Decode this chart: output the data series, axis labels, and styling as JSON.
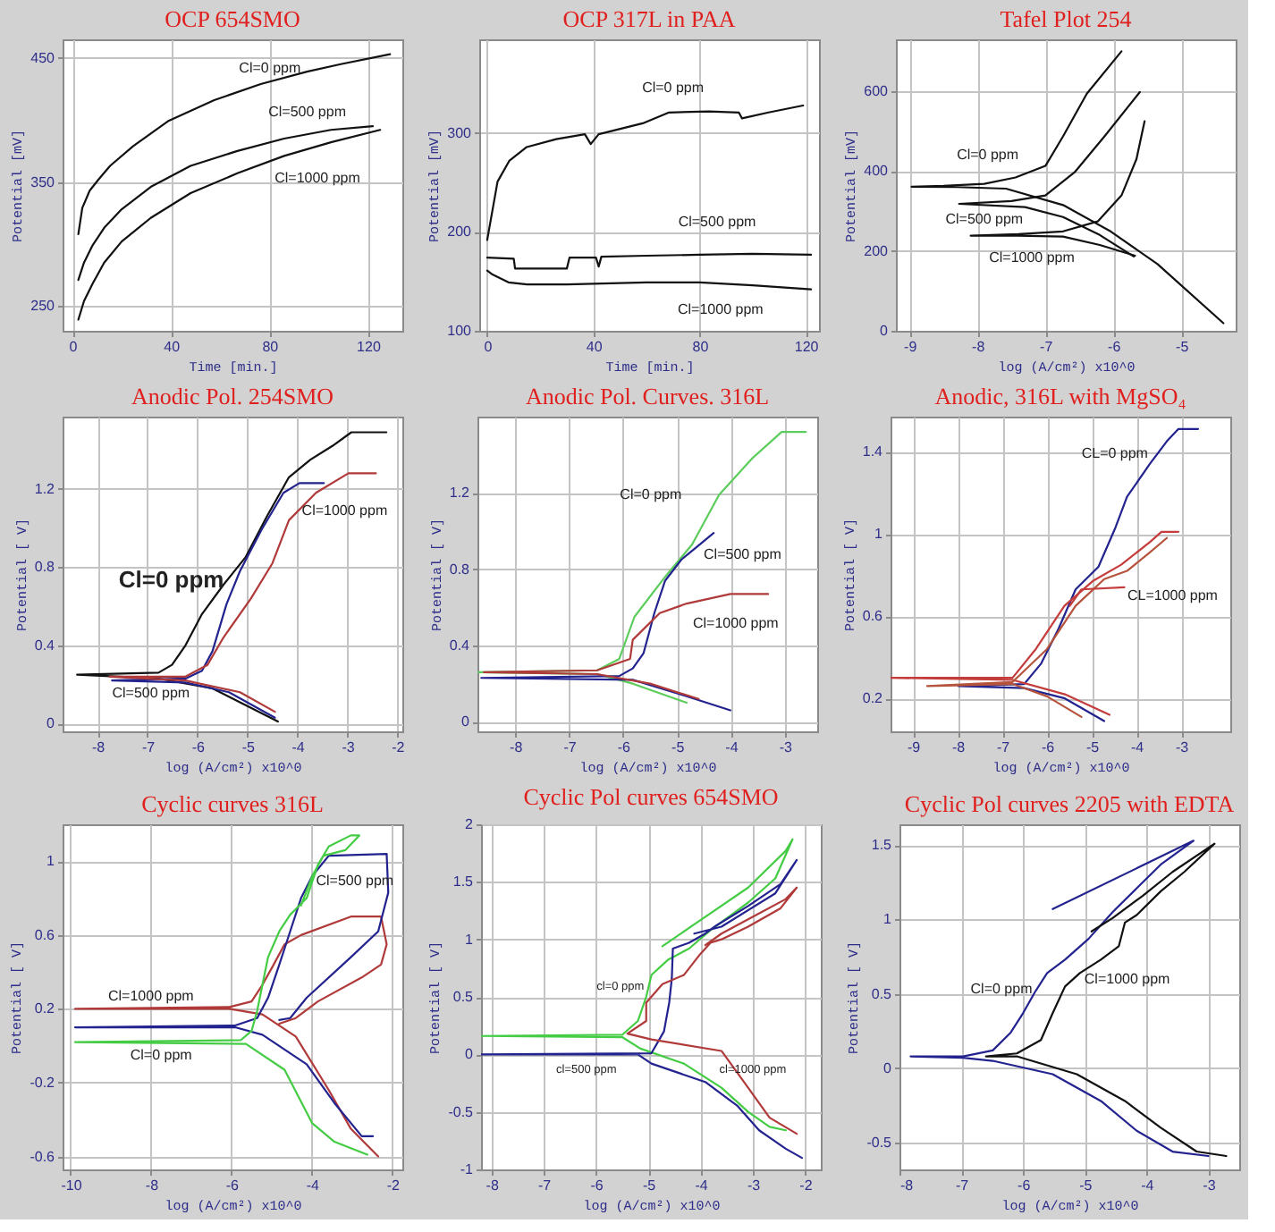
{
  "chart_data": [
    {
      "type": "line",
      "title": "OCP 654SMO",
      "xlabel": "Time [min.]",
      "ylabel": "Potential [mV]",
      "xlim": [
        -4,
        134
      ],
      "ylim": [
        230,
        465
      ],
      "xticks": [
        0,
        40,
        80,
        120
      ],
      "yticks": [
        250,
        350,
        450
      ],
      "grid": true,
      "series": [
        {
          "color": "#111111",
          "x": [
            2.4,
            4,
            7,
            10.6,
            15.3,
            24.7,
            38.8,
            57.6,
            76.5,
            95.3,
            109,
            129
          ],
          "values": [
            308,
            329,
            343,
            352,
            363,
            379,
            399,
            416,
            429,
            439,
            445,
            453
          ]
        },
        {
          "color": "#111111",
          "x": [
            2.4,
            4.7,
            8.2,
            12.9,
            20,
            31.8,
            48,
            67,
            86,
            105,
            122
          ],
          "values": [
            271,
            285,
            299,
            313,
            328,
            346,
            363,
            375,
            385,
            392,
            395
          ]
        },
        {
          "color": "#111111",
          "x": [
            2.4,
            4.7,
            8.2,
            12.9,
            20,
            31.8,
            48,
            67,
            86,
            105,
            125
          ],
          "values": [
            239,
            254,
            268,
            285,
            302,
            321,
            341,
            357,
            371,
            382,
            392
          ]
        }
      ],
      "annotations": [
        "Cl=0 ppm",
        "Cl=500 ppm",
        "Cl=1000 ppm"
      ]
    },
    {
      "type": "line",
      "title": "OCP 317L in PAA",
      "xlabel": "Time [min.]",
      "ylabel": "Potential [mV]",
      "xlim": [
        -3,
        125
      ],
      "ylim": [
        100,
        395
      ],
      "xticks": [
        0,
        40,
        80,
        120
      ],
      "yticks": [
        100,
        200,
        300
      ],
      "grid": true,
      "series": [
        {
          "color": "#111111",
          "x": [
            0,
            3.9,
            8.3,
            14.9,
            26,
            36.8,
            39,
            42,
            58.6,
            68.5,
            83.6,
            94.8,
            96,
            106,
            119
          ],
          "values": [
            192,
            251,
            272,
            286,
            294,
            299,
            289,
            299,
            310,
            321,
            322,
            321,
            315,
            321,
            328
          ]
        },
        {
          "color": "#111111",
          "x": [
            0,
            10,
            10.5,
            30,
            31,
            41,
            42,
            43,
            60,
            80,
            100,
            122
          ],
          "values": [
            174,
            173,
            163,
            163,
            174,
            174,
            165,
            175,
            176,
            177,
            178,
            177
          ]
        },
        {
          "color": "#111111",
          "x": [
            0,
            2,
            8,
            15,
            30,
            60,
            80,
            100,
            122
          ],
          "values": [
            161,
            157,
            149,
            147,
            147,
            149,
            149,
            146,
            142
          ]
        }
      ],
      "annotations": [
        "Cl=0 ppm",
        "Cl=500 ppm",
        "Cl=1000 ppm"
      ]
    },
    {
      "type": "line",
      "title": "Tafel Plot 254",
      "xlabel": "log (A/cm²) x10^0",
      "ylabel": "Potential [mV]",
      "xlim": [
        -9.2,
        -4.2
      ],
      "ylim": [
        0,
        730
      ],
      "xticks": [
        -9,
        -8,
        -7,
        -6,
        -5
      ],
      "yticks": [
        0,
        200,
        400,
        600
      ],
      "grid": true,
      "series": [
        {
          "color": "#111111",
          "x": [
            -4.38,
            -5.35,
            -6.04,
            -6.74,
            -7.58,
            -8.3,
            -8.97,
            -8.5,
            -7.9,
            -7.44,
            -7.0,
            -6.74,
            -6.39,
            -5.88
          ],
          "values": [
            19,
            167,
            249,
            315,
            356,
            360,
            361,
            363,
            368,
            384,
            413,
            487,
            594,
            700
          ]
        },
        {
          "color": "#111111",
          "x": [
            -5.7,
            -6.2,
            -6.74,
            -7.3,
            -8.27,
            -7.5,
            -7.0,
            -6.57,
            -6.13,
            -5.61
          ],
          "values": [
            186,
            240,
            285,
            310,
            318,
            325,
            339,
            397,
            487,
            598
          ]
        },
        {
          "color": "#111111",
          "x": [
            -5.68,
            -6.2,
            -6.74,
            -7.4,
            -8.1,
            -7.4,
            -6.74,
            -6.23,
            -5.88,
            -5.66,
            -5.54
          ],
          "values": [
            188,
            215,
            236,
            238,
            238,
            242,
            249,
            274,
            339,
            430,
            525
          ]
        }
      ],
      "annotations": [
        "Cl=0 ppm",
        "Cl=500 ppm",
        "Cl=1000 ppm"
      ]
    },
    {
      "type": "line",
      "title": "Anodic Pol. 254SMO",
      "xlabel": "log (A/cm²) x10^0",
      "ylabel": "Potential [ V]",
      "xlim": [
        -8.7,
        -1.9
      ],
      "ylim": [
        -0.04,
        1.57
      ],
      "xticks": [
        -8,
        -7,
        -6,
        -5,
        -4,
        -3,
        -2
      ],
      "yticks": [
        0,
        0.4,
        0.8,
        1.2
      ],
      "grid": true,
      "series": [
        {
          "color": "#111111",
          "x": [
            -4.39,
            -5.7,
            -6.78,
            -8.41,
            -6.78,
            -6.51,
            -6.24,
            -5.91,
            -5.48,
            -5.04,
            -4.61,
            -4.17,
            -3.74,
            -3.3,
            -2.92,
            -2.22
          ],
          "values": [
            0.01,
            0.18,
            0.23,
            0.25,
            0.26,
            0.3,
            0.4,
            0.56,
            0.71,
            0.85,
            1.06,
            1.26,
            1.35,
            1.42,
            1.49,
            1.49
          ]
        },
        {
          "color": "#23238f",
          "x": [
            -4.45,
            -5.37,
            -6.24,
            -7.71,
            -6.24,
            -5.91,
            -5.7,
            -5.42,
            -5.15,
            -4.72,
            -4.28,
            -3.96,
            -3.47
          ],
          "values": [
            0.03,
            0.16,
            0.21,
            0.22,
            0.23,
            0.27,
            0.37,
            0.61,
            0.78,
            0.99,
            1.18,
            1.23,
            1.23
          ]
        },
        {
          "color": "#b03a3a",
          "x": [
            -4.45,
            -5.15,
            -6.24,
            -7.76,
            -6.24,
            -5.8,
            -5.48,
            -4.93,
            -4.5,
            -4.17,
            -3.63,
            -2.98,
            -2.43
          ],
          "values": [
            0.06,
            0.16,
            0.22,
            0.24,
            0.24,
            0.3,
            0.44,
            0.64,
            0.82,
            1.04,
            1.18,
            1.28,
            1.28
          ]
        }
      ],
      "annotations": [
        "Cl=0 ppm",
        "Cl=500 ppm",
        "Cl=1000 ppm"
      ]
    },
    {
      "type": "line",
      "title": "Anodic Pol. Curves. 316L",
      "xlabel": "log (A/cm²) x10^0",
      "ylabel": "Potential [ V]",
      "xlim": [
        -8.7,
        -2.4
      ],
      "ylim": [
        -0.05,
        1.6
      ],
      "xticks": [
        -8,
        -7,
        -6,
        -5,
        -4,
        -3
      ],
      "yticks": [
        0,
        0.4,
        0.8,
        1.2
      ],
      "grid": true,
      "series": [
        {
          "color": "#5ccc5c",
          "x": [
            -4.82,
            -5.82,
            -6.48,
            -8.68,
            -6.48,
            -6.07,
            -5.79,
            -5.22,
            -4.72,
            -4.22,
            -3.61,
            -3.06,
            -2.61
          ],
          "values": [
            0.1,
            0.2,
            0.25,
            0.26,
            0.27,
            0.33,
            0.55,
            0.76,
            0.93,
            1.19,
            1.38,
            1.52,
            1.52
          ]
        },
        {
          "color": "#23238f",
          "x": [
            -4.01,
            -5.0,
            -5.82,
            -8.63,
            -6.07,
            -5.82,
            -5.62,
            -5.42,
            -5.22,
            -4.92,
            -4.62,
            -4.32
          ],
          "values": [
            0.06,
            0.15,
            0.22,
            0.23,
            0.24,
            0.28,
            0.36,
            0.57,
            0.74,
            0.85,
            0.92,
            0.99
          ]
        },
        {
          "color": "#b03a3a",
          "x": [
            -4.6,
            -5.5,
            -6.48,
            -8.58,
            -6.48,
            -5.87,
            -5.82,
            -5.32,
            -4.82,
            -4.01,
            -3.31
          ],
          "values": [
            0.12,
            0.2,
            0.25,
            0.26,
            0.27,
            0.33,
            0.43,
            0.57,
            0.62,
            0.67,
            0.67
          ]
        }
      ],
      "annotations": [
        "Cl=0 ppm",
        "Cl=500 ppm",
        "Cl=1000 ppm"
      ]
    },
    {
      "type": "line",
      "title": "Anodic, 316L with MgSO₄",
      "xlabel": "log (A/cm²) x10^0",
      "ylabel": "Potential [ V]",
      "xlim": [
        -9.5,
        -1.9
      ],
      "ylim": [
        0.04,
        1.57
      ],
      "xticks": [
        -9,
        -8,
        -7,
        -6,
        -5,
        -4,
        -3
      ],
      "yticks": [
        0.2,
        0.6,
        1,
        1.4
      ],
      "grid": true,
      "series": [
        {
          "color": "#23238f",
          "x": [
            -4.72,
            -5.6,
            -6.51,
            -7.98,
            -6.51,
            -6.13,
            -5.74,
            -5.36,
            -4.85,
            -4.47,
            -4.21,
            -3.7,
            -3.32,
            -3.06,
            -2.62
          ],
          "values": [
            0.09,
            0.2,
            0.25,
            0.26,
            0.27,
            0.37,
            0.54,
            0.73,
            0.84,
            1.03,
            1.18,
            1.34,
            1.45,
            1.51,
            1.51
          ]
        },
        {
          "color": "#c43c3c",
          "x": [
            -4.6,
            -5.6,
            -6.77,
            -9.5,
            -6.77,
            -6.25,
            -5.61,
            -4.98,
            -4.34,
            -3.7,
            -3.44,
            -3.06
          ],
          "values": [
            0.12,
            0.22,
            0.29,
            0.3,
            0.3,
            0.44,
            0.65,
            0.77,
            0.85,
            0.96,
            1.01,
            1.01
          ]
        },
        {
          "color": "#b5533c",
          "x": [
            -5.23,
            -6.0,
            -6.77,
            -8.68,
            -6.77,
            -6.0,
            -5.36,
            -4.72,
            -4.21,
            -3.7,
            -3.32
          ],
          "values": [
            0.11,
            0.21,
            0.27,
            0.26,
            0.28,
            0.44,
            0.65,
            0.78,
            0.82,
            0.91,
            0.98
          ]
        },
        {
          "color": "#c43c3c",
          "x": [
            -5.49,
            -5.23,
            -4.27
          ],
          "values": [
            0.65,
            0.73,
            0.74
          ]
        }
      ],
      "annotations": [
        "CL=0 ppm",
        "CL=1000 ppm"
      ]
    },
    {
      "type": "line",
      "title": "Cyclic curves 316L",
      "xlabel": "log (A/cm²) x10^0",
      "ylabel": "Potential [ V]",
      "xlim": [
        -10.2,
        -1.75
      ],
      "ylim": [
        -0.67,
        1.2
      ],
      "xticks": [
        -10,
        -8,
        -6,
        -4,
        -2
      ],
      "yticks": [
        -0.6,
        -0.2,
        0.2,
        0.6,
        1
      ],
      "grid": true,
      "series": [
        {
          "color": "#b03a3a",
          "x": [
            -2.35,
            -3.03,
            -3.58,
            -4.4,
            -5.23,
            -6.05,
            -9.89,
            -6.05,
            -5.5,
            -5.23,
            -4.95,
            -4.68,
            -4.27,
            -3.03,
            -2.28,
            -2.14,
            -2.28,
            -2.76,
            -3.85,
            -4.4,
            -4.81
          ],
          "values": [
            -0.6,
            -0.45,
            -0.24,
            0.05,
            0.17,
            0.2,
            0.2,
            0.21,
            0.24,
            0.33,
            0.44,
            0.55,
            0.6,
            0.7,
            0.7,
            0.55,
            0.44,
            0.37,
            0.24,
            0.15,
            0.12
          ]
        },
        {
          "color": "#23238f",
          "x": [
            -2.48,
            -2.76,
            -3.44,
            -4.13,
            -5.23,
            -5.91,
            -9.89,
            -5.91,
            -5.36,
            -5.09,
            -4.81,
            -4.54,
            -4.27,
            -3.99,
            -3.58,
            -2.14,
            -2.1,
            -2.35,
            -3.03,
            -4.13,
            -4.54,
            -4.81
          ],
          "values": [
            -0.49,
            -0.49,
            -0.31,
            -0.1,
            0.06,
            0.1,
            0.1,
            0.11,
            0.15,
            0.26,
            0.44,
            0.62,
            0.8,
            0.92,
            1.03,
            1.04,
            0.83,
            0.62,
            0.48,
            0.26,
            0.15,
            0.14
          ]
        },
        {
          "color": "#44cc44",
          "x": [
            -2.62,
            -3.44,
            -3.99,
            -4.68,
            -5.64,
            -9.89,
            -5.77,
            -5.5,
            -5.36,
            -5.23,
            -5.09,
            -4.81,
            -4.54,
            -4.13,
            -3.85,
            -3.58,
            -3.03,
            -2.82,
            -3.17,
            -3.71,
            -3.99,
            -4.27
          ],
          "values": [
            -0.59,
            -0.52,
            -0.42,
            -0.13,
            0.01,
            0.02,
            0.03,
            0.08,
            0.19,
            0.33,
            0.48,
            0.62,
            0.71,
            0.8,
            0.98,
            1.08,
            1.14,
            1.14,
            1.06,
            1.03,
            0.92,
            0.76
          ]
        }
      ],
      "annotations": [
        "Cl=1000 ppm",
        "Cl=0 ppm",
        "Cl=500 ppm"
      ]
    },
    {
      "type": "line",
      "title": "Cyclic Pol curves 654SMO",
      "xlabel": "log (A/cm²) x10^0",
      "ylabel": "Potential [ V]",
      "xlim": [
        -8.2,
        -1.7
      ],
      "ylim": [
        -1,
        2
      ],
      "xticks": [
        -8,
        -7,
        -6,
        -5,
        -4,
        -3,
        -2
      ],
      "yticks": [
        -1,
        -0.5,
        0,
        0.5,
        1,
        1.5,
        2
      ],
      "grid": true,
      "series": [
        {
          "color": "#44cc44",
          "x": [
            -2.37,
            -2.68,
            -3.09,
            -3.6,
            -4.32,
            -5.15,
            -5.5,
            -8.2,
            -5.5,
            -5.2,
            -5.04,
            -4.94,
            -4.63,
            -4.22,
            -3.81,
            -3.09,
            -2.57,
            -2.24,
            -2.37,
            -3.09,
            -4.12,
            -4.73
          ],
          "values": [
            -0.66,
            -0.63,
            -0.5,
            -0.29,
            -0.08,
            0.05,
            0.15,
            0.16,
            0.17,
            0.29,
            0.5,
            0.69,
            0.82,
            0.92,
            1.08,
            1.32,
            1.53,
            1.87,
            1.77,
            1.45,
            1.13,
            0.94
          ]
        },
        {
          "color": "#23238f",
          "x": [
            -2.06,
            -2.37,
            -2.88,
            -3.29,
            -3.91,
            -4.94,
            -5.2,
            -8.2,
            -4.94,
            -4.7,
            -4.6,
            -4.55,
            -4.53,
            -4.22,
            -3.91,
            -3.7,
            -3.09,
            -2.47,
            -2.16,
            -2.57,
            -3.6,
            -4.12
          ],
          "values": [
            -0.9,
            -0.82,
            -0.66,
            -0.45,
            -0.24,
            -0.08,
            0.0,
            0.0,
            0.01,
            0.2,
            0.45,
            0.66,
            0.92,
            0.97,
            1.05,
            1.12,
            1.29,
            1.48,
            1.69,
            1.4,
            1.11,
            1.05
          ]
        },
        {
          "color": "#b03a3a",
          "x": [
            -2.16,
            -2.68,
            -3.09,
            -3.6,
            -4.94,
            -5.4,
            -5.04,
            -5.04,
            -4.73,
            -4.32,
            -4.01,
            -3.81,
            -3.6,
            -3.09,
            -2.47,
            -2.16,
            -2.37,
            -3.6,
            -3.91
          ],
          "values": [
            -0.69,
            -0.55,
            -0.29,
            0.03,
            0.13,
            0.18,
            0.29,
            0.45,
            0.61,
            0.69,
            0.87,
            0.97,
            1.0,
            1.11,
            1.27,
            1.45,
            1.35,
            1.05,
            0.95
          ]
        }
      ],
      "annotations": [
        "cl=0 ppm",
        "cl=500 ppm",
        "cl=1000 ppm"
      ]
    },
    {
      "type": "line",
      "title": "Cyclic Pol curves 2205 with EDTA",
      "xlabel": "log (A/cm²) x10^0",
      "ylabel": "Potential [ V]",
      "xlim": [
        -8,
        -2.5
      ],
      "ylim": [
        -0.68,
        1.64
      ],
      "xticks": [
        -8,
        -7,
        -6,
        -5,
        -4,
        -3
      ],
      "yticks": [
        -0.5,
        0,
        0.5,
        1,
        1.5
      ],
      "grid": true,
      "series": [
        {
          "color": "#23238f",
          "x": [
            -3.0,
            -3.58,
            -4.16,
            -4.74,
            -5.52,
            -6.49,
            -6.97,
            -7.82,
            -6.97,
            -6.49,
            -6.2,
            -6.0,
            -5.81,
            -5.61,
            -5.32,
            -4.94,
            -4.55,
            -4.16,
            -3.77,
            -3.24,
            -5.52
          ],
          "values": [
            -0.59,
            -0.56,
            -0.42,
            -0.22,
            -0.04,
            0.05,
            0.07,
            0.08,
            0.08,
            0.12,
            0.24,
            0.37,
            0.51,
            0.64,
            0.73,
            0.87,
            1.05,
            1.21,
            1.37,
            1.53,
            1.07
          ]
        },
        {
          "color": "#111111",
          "x": [
            -2.71,
            -3.19,
            -3.77,
            -4.35,
            -5.13,
            -6.1,
            -6.6,
            -6.1,
            -5.71,
            -5.52,
            -5.32,
            -5.08,
            -4.74,
            -4.45,
            -4.35,
            -4.16,
            -3.77,
            -3.39,
            -2.9,
            -3.58,
            -4.06,
            -4.55,
            -4.89
          ],
          "values": [
            -0.59,
            -0.56,
            -0.4,
            -0.22,
            -0.04,
            0.08,
            0.08,
            0.1,
            0.19,
            0.37,
            0.55,
            0.64,
            0.73,
            0.82,
            0.98,
            1.03,
            1.19,
            1.32,
            1.51,
            1.32,
            1.16,
            1.01,
            0.92
          ]
        }
      ],
      "annotations": [
        "Cl=0 ppm",
        "Cl=1000 ppm"
      ]
    }
  ]
}
